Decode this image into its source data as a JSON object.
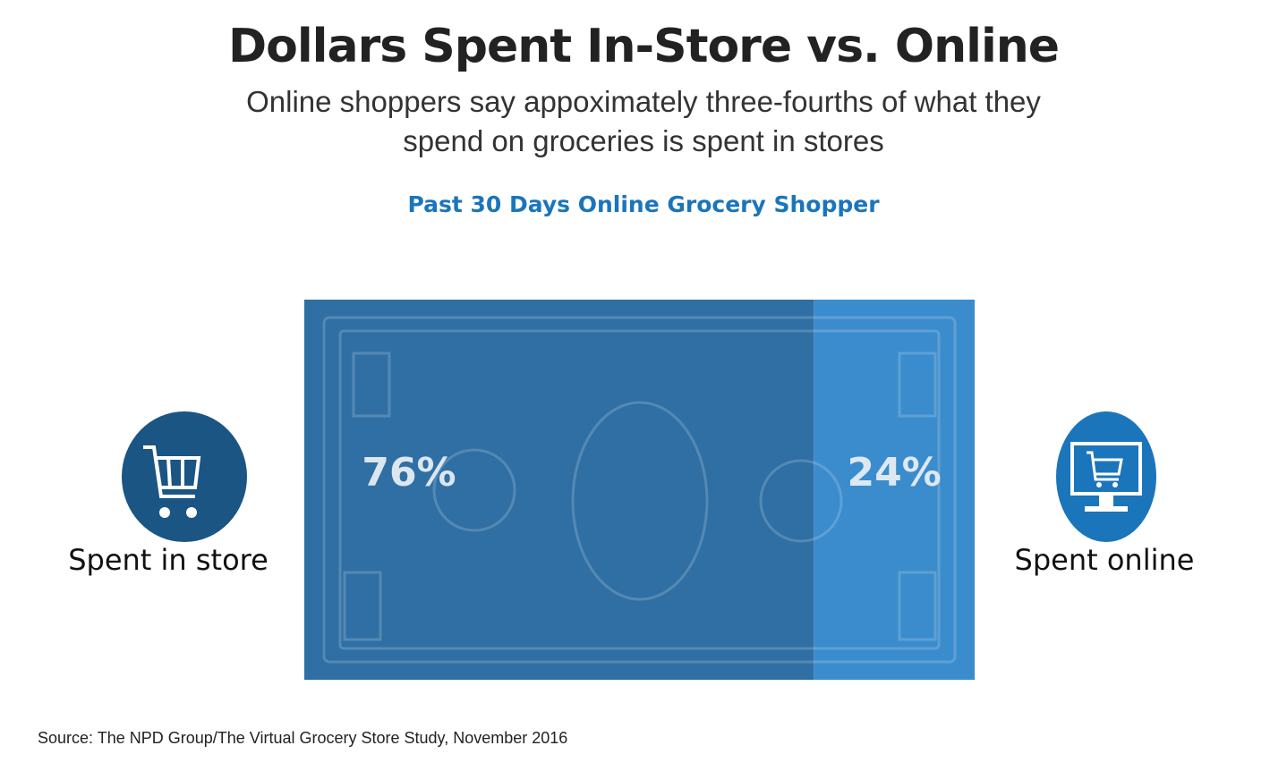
{
  "chart_data": {
    "type": "bar",
    "title": "Dollars Spent In-Store vs. Online",
    "subtitle": "Online shoppers say appoximately three-fourths of what they spend on groceries is spent in stores",
    "chart_title": "Past 30 Days Online Grocery Shopper",
    "categories": [
      "Spent in store",
      "Spent online"
    ],
    "values": [
      76,
      24
    ],
    "value_labels": [
      "76%",
      "24%"
    ],
    "colors": [
      "#2f6fa4",
      "#3b8ccc"
    ],
    "source": "Source: The NPD Group/The Virtual Grocery Store Study, November 2016"
  }
}
